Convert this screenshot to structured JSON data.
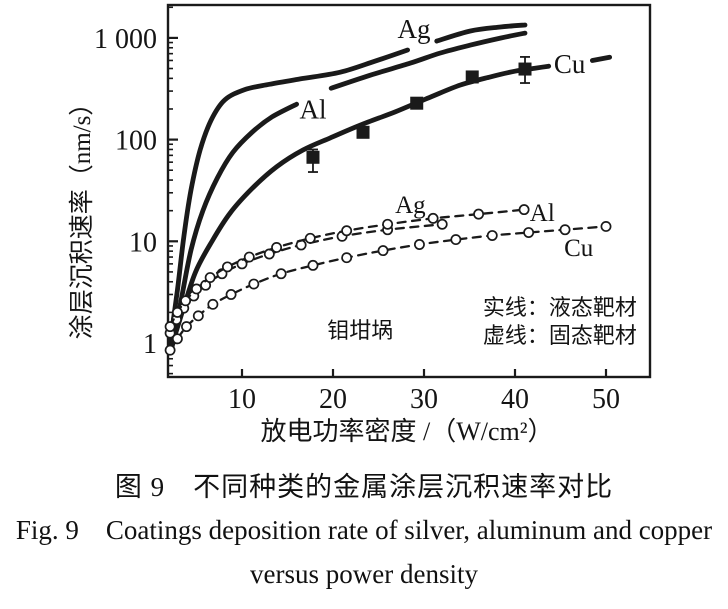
{
  "ink_color": "#1a1a1a",
  "background_color": "#ffffff",
  "caption": {
    "line1": "图 9　不同种类的金属涂层沉积速率对比",
    "line2": "Fig. 9　Coatings deposition rate of silver, aluminum and copper",
    "line3": "versus power density"
  },
  "chart_data": {
    "type": "line",
    "title": "",
    "xlabel": "放电功率密度 /（W/cm²）",
    "ylabel": "涂层沉积速率（nm/s）",
    "x_scale": "linear",
    "y_scale": "log",
    "x_range": [
      1.9,
      54.8
    ],
    "y_range": [
      0.46,
      2100
    ],
    "x_ticks": [
      10,
      20,
      30,
      40,
      50
    ],
    "y_ticks": [
      1,
      10,
      100,
      1000
    ],
    "y_tick_labels": [
      "1",
      "10",
      "100",
      "1 000"
    ],
    "grid": false,
    "legend_note": [
      "实线：液态靶材",
      "虚线：固态靶材"
    ],
    "crucible_note": "钼坩埚",
    "series": [
      {
        "name": "Ag-solid",
        "metal": "Ag",
        "target": "液态靶材",
        "style": "solid",
        "marker": "none",
        "segments": [
          [
            [
              2.1,
              1.0
            ],
            [
              2.9,
              3.3
            ],
            [
              3.6,
              11
            ],
            [
              4.4,
              32
            ],
            [
              5.4,
              79
            ],
            [
              6.6,
              155
            ],
            [
              8.1,
              245
            ],
            [
              10.3,
              310
            ],
            [
              13,
              350
            ],
            [
              16.4,
              395
            ],
            [
              20.8,
              460
            ],
            [
              24.6,
              590
            ],
            [
              28.2,
              760
            ]
          ],
          [
            [
              31.4,
              930
            ],
            [
              35.1,
              1170
            ],
            [
              38.4,
              1280
            ],
            [
              41.1,
              1340
            ]
          ]
        ]
      },
      {
        "name": "Al-solid",
        "metal": "Al",
        "target": "液态靶材",
        "style": "solid",
        "marker": "none",
        "segments": [
          [
            [
              2.3,
              0.9
            ],
            [
              3.3,
              2.6
            ],
            [
              4.4,
              8.2
            ],
            [
              5.7,
              20
            ],
            [
              7.3,
              42
            ],
            [
              9.0,
              75
            ],
            [
              11.1,
              118
            ],
            [
              13.3,
              167
            ],
            [
              16.0,
              223
            ]
          ],
          [
            [
              19.8,
              320
            ],
            [
              24.1,
              430
            ],
            [
              28.5,
              565
            ],
            [
              31.8,
              710
            ],
            [
              35.1,
              850
            ],
            [
              38.4,
              995
            ],
            [
              41.1,
              1115
            ]
          ]
        ]
      },
      {
        "name": "Cu-solid",
        "metal": "Cu",
        "target": "液态靶材",
        "style": "solid",
        "marker": "square",
        "segments": [
          [
            [
              2.3,
              0.95
            ],
            [
              3.5,
              2.1
            ],
            [
              4.9,
              5.0
            ],
            [
              6.7,
              10
            ],
            [
              8.7,
              19
            ],
            [
              11.1,
              33
            ],
            [
              13.8,
              54
            ],
            [
              16.7,
              79
            ],
            [
              19.7,
              104
            ],
            [
              23.0,
              139
            ],
            [
              26.8,
              187
            ],
            [
              30.7,
              262
            ],
            [
              34.0,
              344
            ],
            [
              37.3,
              414
            ],
            [
              40.0,
              471
            ],
            [
              42.2,
              504
            ],
            [
              43.7,
              527
            ]
          ],
          [
            [
              48.5,
              600
            ],
            [
              50.4,
              645
            ]
          ]
        ],
        "data_points": {
          "x": [
            17.8,
            23.3,
            29.2,
            35.3,
            41.1
          ],
          "y": [
            67,
            118,
            228,
            413,
            494
          ],
          "error_bars": [
            {
              "index": 0,
              "low": 48,
              "high": 80
            },
            {
              "index": 4,
              "low": 360,
              "high": 650
            }
          ]
        }
      },
      {
        "name": "Ag-dashed",
        "metal": "Ag",
        "target": "固态靶材",
        "style": "dashed",
        "marker": "circle",
        "segments": [
          [
            [
              2.1,
              1.25
            ],
            [
              2.8,
              1.7
            ],
            [
              3.6,
              2.2
            ],
            [
              4.7,
              2.9
            ],
            [
              6.0,
              3.7
            ],
            [
              7.8,
              4.8
            ],
            [
              10.0,
              6.0
            ],
            [
              13.0,
              7.5
            ],
            [
              16.5,
              9.2
            ],
            [
              21.0,
              11.2
            ],
            [
              26.0,
              13.0
            ],
            [
              32.0,
              14.7
            ]
          ]
        ]
      },
      {
        "name": "Al-dashed",
        "metal": "Al",
        "target": "固态靶材",
        "style": "dashed",
        "marker": "circle",
        "segments": [
          [
            [
              2.1,
              1.45
            ],
            [
              2.9,
              2.0
            ],
            [
              3.8,
              2.6
            ],
            [
              5.0,
              3.4
            ],
            [
              6.5,
              4.4
            ],
            [
              8.4,
              5.6
            ],
            [
              10.8,
              7.0
            ],
            [
              13.8,
              8.7
            ],
            [
              17.5,
              10.7
            ],
            [
              21.5,
              12.7
            ],
            [
              26.0,
              14.7
            ],
            [
              31.0,
              16.8
            ],
            [
              36.0,
              18.5
            ],
            [
              41.0,
              20.5
            ]
          ]
        ]
      },
      {
        "name": "Cu-dashed",
        "metal": "Cu",
        "target": "固态靶材",
        "style": "dashed",
        "marker": "circle",
        "segments": [
          [
            [
              2.1,
              0.85
            ],
            [
              2.9,
              1.1
            ],
            [
              3.9,
              1.45
            ],
            [
              5.2,
              1.85
            ],
            [
              6.8,
              2.4
            ],
            [
              8.8,
              3.0
            ],
            [
              11.3,
              3.8
            ],
            [
              14.3,
              4.8
            ],
            [
              17.8,
              5.8
            ],
            [
              21.5,
              6.9
            ],
            [
              25.5,
              8.1
            ],
            [
              29.5,
              9.3
            ],
            [
              33.5,
              10.4
            ],
            [
              37.5,
              11.4
            ],
            [
              41.5,
              12.2
            ],
            [
              45.5,
              13.0
            ],
            [
              50.0,
              14.0
            ]
          ]
        ]
      }
    ],
    "annotations": [
      {
        "text": "Ag",
        "x": 28.9,
        "y": 1150,
        "anchor": "middle",
        "size": 27,
        "name": "label-ag-solid"
      },
      {
        "text": "Al",
        "x": 17.8,
        "y": 185,
        "anchor": "middle",
        "size": 27,
        "name": "label-al-solid"
      },
      {
        "text": "Cu",
        "x": 46.0,
        "y": 520,
        "anchor": "middle",
        "size": 27,
        "name": "label-cu-solid"
      },
      {
        "text": "Ag",
        "x": 28.5,
        "y": 21.5,
        "anchor": "middle",
        "size": 25,
        "name": "label-ag-dashed"
      },
      {
        "text": "Al",
        "x": 43.0,
        "y": 18.0,
        "anchor": "middle",
        "size": 25,
        "name": "label-al-dashed"
      },
      {
        "text": "Cu",
        "x": 47.0,
        "y": 8.2,
        "anchor": "middle",
        "size": 25,
        "name": "label-cu-dashed"
      },
      {
        "text": "钼坩埚",
        "x": 23.0,
        "y": 1.25,
        "anchor": "middle",
        "size": 22,
        "name": "label-crucible"
      },
      {
        "text": "实线：液态靶材",
        "x": 53.4,
        "y": 2.11,
        "anchor": "end",
        "size": 22,
        "name": "legend-solid-note"
      },
      {
        "text": "虚线：固态靶材",
        "x": 53.4,
        "y": 1.12,
        "anchor": "end",
        "size": 22,
        "name": "legend-dashed-note"
      }
    ]
  }
}
